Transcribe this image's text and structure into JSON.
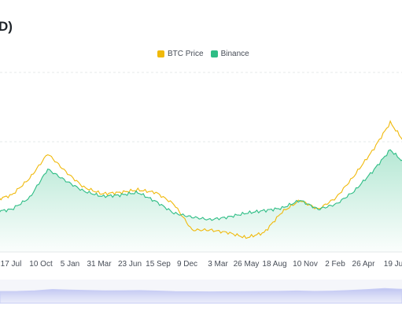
{
  "header": {
    "title_fragment": "D)"
  },
  "colors": {
    "btc": "#F0B90B",
    "binance": "#2EBD85",
    "grid": "#e6e8ea",
    "navigator": "#c8cdf5",
    "axis_text": "#474d57"
  },
  "chart_data": {
    "type": "line",
    "title": "",
    "xlabel": "",
    "ylabel": "",
    "legend_position": "top-center",
    "grid": true,
    "x_ticks": [
      "17 Jul",
      "10 Oct",
      "5 Jan",
      "31 Mar",
      "23 Jun",
      "15 Sep",
      "9 Dec",
      "3 Mar",
      "26 May",
      "18 Aug",
      "10 Nov",
      "2 Feb",
      "26 Apr",
      "19 Ju"
    ],
    "series": [
      {
        "name": "BTC Price",
        "color": "#F0B90B",
        "values": [
          0.2,
          0.24,
          0.37,
          0.56,
          0.42,
          0.3,
          0.25,
          0.26,
          0.28,
          0.26,
          0.17,
          -0.03,
          -0.03,
          -0.05,
          -0.09,
          -0.05,
          0.11,
          0.2,
          0.13,
          0.22,
          0.39,
          0.58,
          0.8,
          0.61
        ]
      },
      {
        "name": "Binance",
        "color": "#2EBD85",
        "values": [
          0.11,
          0.13,
          0.22,
          0.44,
          0.35,
          0.27,
          0.23,
          0.24,
          0.26,
          0.19,
          0.1,
          0.07,
          0.05,
          0.07,
          0.1,
          0.12,
          0.14,
          0.2,
          0.13,
          0.17,
          0.27,
          0.42,
          0.59,
          0.46
        ]
      }
    ]
  }
}
